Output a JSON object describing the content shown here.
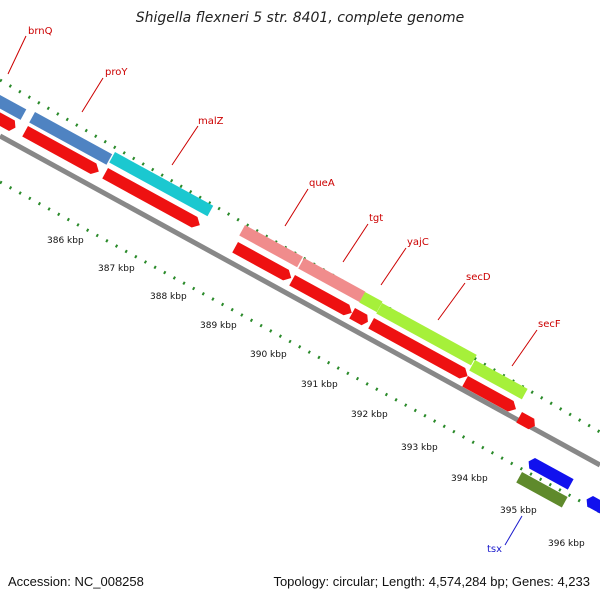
{
  "title": "Shigella flexneri 5 str. 8401, complete genome",
  "footer": {
    "accession": "Accession: NC_008258",
    "summary": "Topology: circular; Length: 4,574,284 bp; Genes: 4,233"
  },
  "scale_labels": [
    "386 kbp",
    "387 kbp",
    "388 kbp",
    "389 kbp",
    "390 kbp",
    "391 kbp",
    "392 kbp",
    "393 kbp",
    "394 kbp",
    "395 kbp",
    "396 kbp"
  ],
  "genes": [
    {
      "name": "brnQ",
      "color": "#4f83c2"
    },
    {
      "name": "proY",
      "color": "#4f83c2"
    },
    {
      "name": "malZ",
      "color": "#1bc8d0"
    },
    {
      "name": "queA",
      "color": "#f08c8c"
    },
    {
      "name": "tgt",
      "color": "#f08c8c"
    },
    {
      "name": "yajC",
      "color": "#a6f03a"
    },
    {
      "name": "secD",
      "color": "#a6f03a"
    },
    {
      "name": "secF",
      "color": "#a6f03a"
    },
    {
      "name": "tsx",
      "color": "#5f8a2c"
    }
  ],
  "colors": {
    "cds": "#ee1111",
    "backbone": "#888888",
    "tick": "#2a8a2a",
    "label_line_red": "#cc0000",
    "label_line_blue": "#1a1acc"
  }
}
